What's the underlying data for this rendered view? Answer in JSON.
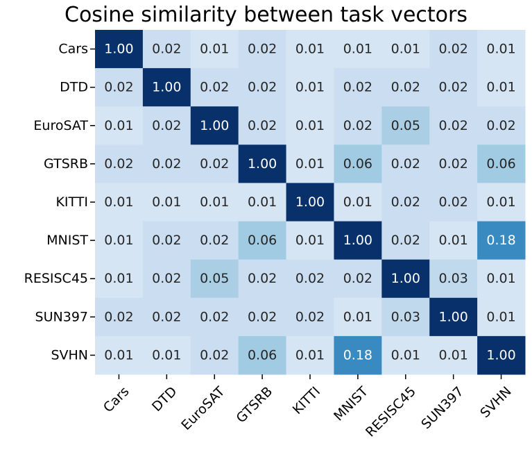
{
  "chart_data": {
    "type": "heatmap",
    "title": "Cosine similarity between task vectors",
    "rows": [
      "Cars",
      "DTD",
      "EuroSAT",
      "GTSRB",
      "KITTI",
      "MNIST",
      "RESISC45",
      "SUN397",
      "SVHN"
    ],
    "columns": [
      "Cars",
      "DTD",
      "EuroSAT",
      "GTSRB",
      "KITTI",
      "MNIST",
      "RESISC45",
      "SUN397",
      "SVHN"
    ],
    "values": [
      [
        1.0,
        0.02,
        0.01,
        0.02,
        0.01,
        0.01,
        0.01,
        0.02,
        0.01
      ],
      [
        0.02,
        1.0,
        0.02,
        0.02,
        0.01,
        0.02,
        0.02,
        0.02,
        0.01
      ],
      [
        0.01,
        0.02,
        1.0,
        0.02,
        0.01,
        0.02,
        0.05,
        0.02,
        0.02
      ],
      [
        0.02,
        0.02,
        0.02,
        1.0,
        0.01,
        0.06,
        0.02,
        0.02,
        0.06
      ],
      [
        0.01,
        0.01,
        0.01,
        0.01,
        1.0,
        0.01,
        0.02,
        0.02,
        0.01
      ],
      [
        0.01,
        0.02,
        0.02,
        0.06,
        0.01,
        1.0,
        0.02,
        0.01,
        0.18
      ],
      [
        0.01,
        0.02,
        0.05,
        0.02,
        0.02,
        0.02,
        1.0,
        0.03,
        0.01
      ],
      [
        0.02,
        0.02,
        0.02,
        0.02,
        0.02,
        0.01,
        0.03,
        1.0,
        0.01
      ],
      [
        0.01,
        0.01,
        0.02,
        0.06,
        0.01,
        0.18,
        0.01,
        0.01,
        1.0
      ]
    ],
    "colormap": "Blues",
    "colors": {
      "low": "#f0f6fc",
      "mid": "#c6dbef",
      "high_mid": "#2a79bd",
      "high": "#08306b",
      "text_dark": "#262626",
      "text_light": "#ffffff"
    },
    "value_format": "0.00",
    "annotated": true,
    "grid": false,
    "legend": "none",
    "colorbar": false,
    "xtick_rotation": -45
  }
}
